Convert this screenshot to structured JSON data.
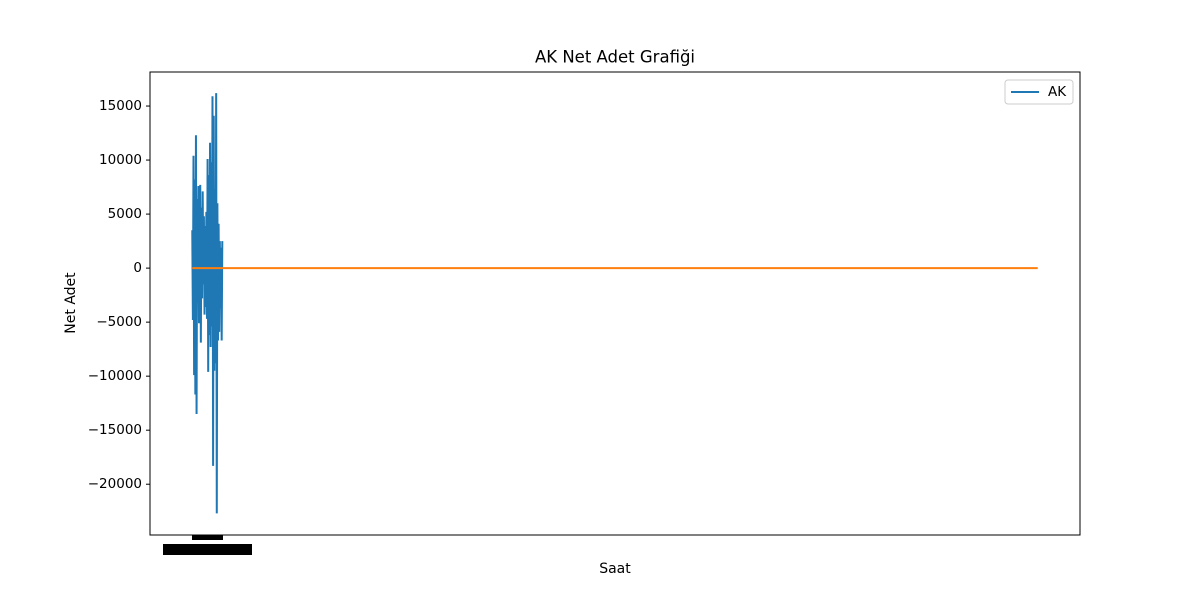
{
  "chart_data": {
    "type": "line",
    "title": "AK Net Adet Grafiği",
    "x_label": "Saat",
    "y_label": "Net Adet",
    "series": [
      {
        "name": "AK",
        "color": "#1f77b4",
        "x": [
          0,
          1,
          2,
          3,
          4,
          5,
          6,
          7,
          8,
          9,
          10,
          11,
          12,
          13,
          14,
          15,
          16,
          17,
          18,
          19,
          20,
          21,
          22,
          23,
          24,
          25,
          26,
          27,
          28,
          29,
          30,
          31,
          32,
          33,
          34,
          35,
          36,
          37,
          38,
          39,
          40,
          41,
          42,
          43,
          44,
          45,
          46,
          47,
          48,
          49
        ],
        "values": [
          3500,
          -4800,
          10400,
          -9900,
          8200,
          -11700,
          12300,
          -13500,
          6400,
          -3200,
          7600,
          -5100,
          2100,
          7700,
          -6900,
          5600,
          -2800,
          7100,
          -1500,
          4800,
          -4300,
          3900,
          -3600,
          5200,
          -4700,
          10100,
          -9600,
          8600,
          -6200,
          11600,
          -7300,
          9800,
          -5400,
          15900,
          -18300,
          14100,
          -9500,
          7300,
          -8800,
          16200,
          -22700,
          6000,
          -6700,
          4100,
          -5900,
          2500,
          -3700,
          1900,
          -6700,
          2500
        ]
      },
      {
        "color": "#ff7f0e",
        "x": [
          0,
          1380
        ],
        "values": [
          0,
          0
        ]
      }
    ],
    "xlim": [
      -69,
      1449
    ],
    "ylim": [
      -24700,
      18150
    ],
    "yticks": [
      {
        "value": -20000,
        "label": "−20000"
      },
      {
        "value": -15000,
        "label": "−15000"
      },
      {
        "value": -10000,
        "label": "−10000"
      },
      {
        "value": -5000,
        "label": "−5000"
      },
      0,
      5000,
      10000,
      15000
    ],
    "legend": "upper right"
  }
}
